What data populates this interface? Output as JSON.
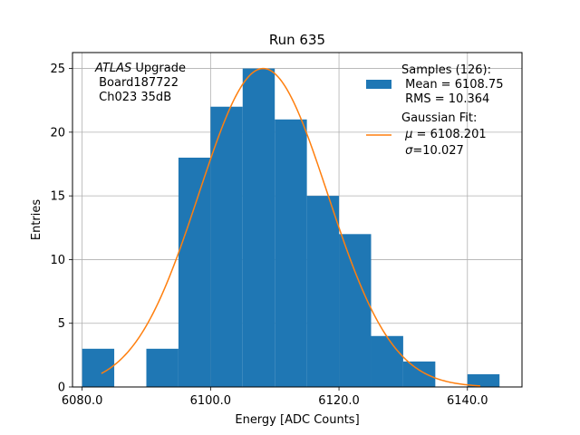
{
  "chart_data": {
    "type": "bar",
    "title": "Run 635",
    "xlabel": "Energy [ADC Counts]",
    "ylabel": "Entries",
    "xlim": [
      6078.5,
      6148.5
    ],
    "ylim": [
      0,
      26.25
    ],
    "grid": true,
    "xticks": [
      6080,
      6100,
      6120,
      6140
    ],
    "xtick_labels": [
      "6080.0",
      "6100.0",
      "6120.0",
      "6140.0"
    ],
    "yticks": [
      0,
      5,
      10,
      15,
      20,
      25
    ],
    "ytick_labels": [
      "0",
      "5",
      "10",
      "15",
      "20",
      "25"
    ],
    "bar_color": "#1f77b4",
    "fit_color": "#ff7f0e",
    "histogram": {
      "bin_edges": [
        6080,
        6085,
        6090,
        6095,
        6100,
        6105,
        6110,
        6115,
        6120,
        6125,
        6130,
        6135,
        6140,
        6145
      ],
      "counts": [
        3,
        0,
        3,
        18,
        22,
        25,
        21,
        15,
        12,
        4,
        2,
        0,
        1
      ]
    },
    "gaussian_fit": {
      "mu": 6108.201,
      "sigma": 10.027,
      "amplitude": 25,
      "x_range": [
        6083,
        6142
      ]
    },
    "annotation": {
      "italic": "ATLAS",
      "line1_rest": " Upgrade",
      "line2": " Board187722",
      "line3": " Ch023 35dB"
    },
    "legend": {
      "position": "top-right",
      "entries": [
        {
          "kind": "patch",
          "lines": [
            "Samples (126):",
            " Mean = 6108.75",
            " RMS = 10.364"
          ]
        },
        {
          "kind": "line",
          "lines": [
            "Gaussian Fit:"
          ],
          "mu_prefix": " ",
          "mu_symbol": "μ",
          "mu_value": " = 6108.201",
          "sigma_prefix": " ",
          "sigma_symbol": "σ",
          "sigma_value": "=10.027"
        }
      ]
    }
  }
}
